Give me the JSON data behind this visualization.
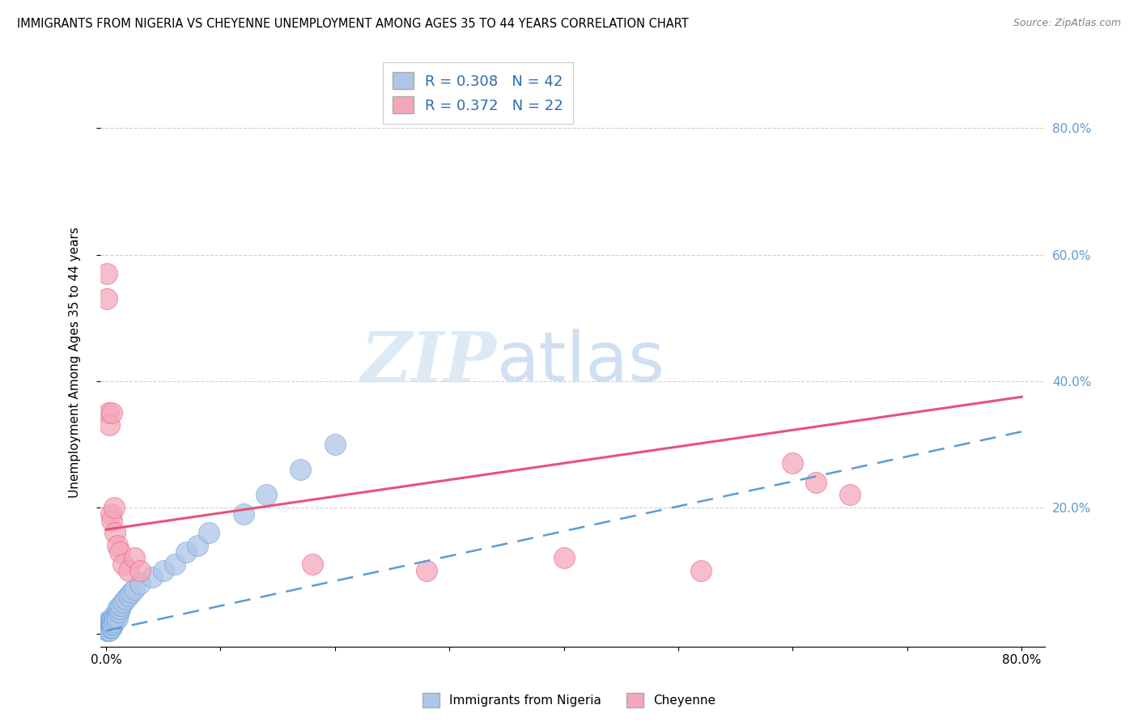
{
  "title": "IMMIGRANTS FROM NIGERIA VS CHEYENNE UNEMPLOYMENT AMONG AGES 35 TO 44 YEARS CORRELATION CHART",
  "source": "Source: ZipAtlas.com",
  "ylabel": "Unemployment Among Ages 35 to 44 years",
  "legend_label1": "Immigrants from Nigeria",
  "legend_label2": "Cheyenne",
  "R1": 0.308,
  "N1": 42,
  "R2": 0.372,
  "N2": 22,
  "color1": "#aec6e8",
  "color2": "#f4a7b9",
  "trendline1_color": "#5b9bd5",
  "trendline2_color": "#e8527a",
  "watermark_zip": "ZIP",
  "watermark_atlas": "atlas",
  "blue_x": [
    0.001,
    0.001,
    0.001,
    0.002,
    0.002,
    0.002,
    0.003,
    0.003,
    0.003,
    0.003,
    0.004,
    0.004,
    0.005,
    0.005,
    0.005,
    0.006,
    0.006,
    0.007,
    0.007,
    0.008,
    0.009,
    0.01,
    0.01,
    0.011,
    0.012,
    0.013,
    0.015,
    0.017,
    0.02,
    0.022,
    0.025,
    0.03,
    0.04,
    0.05,
    0.06,
    0.07,
    0.08,
    0.09,
    0.12,
    0.14,
    0.17,
    0.2
  ],
  "blue_y": [
    0.01,
    0.005,
    0.02,
    0.01,
    0.015,
    0.005,
    0.01,
    0.015,
    0.02,
    0.005,
    0.01,
    0.02,
    0.01,
    0.015,
    0.02,
    0.015,
    0.025,
    0.02,
    0.03,
    0.025,
    0.03,
    0.025,
    0.04,
    0.035,
    0.04,
    0.045,
    0.05,
    0.055,
    0.06,
    0.065,
    0.07,
    0.08,
    0.09,
    0.1,
    0.11,
    0.13,
    0.14,
    0.16,
    0.19,
    0.22,
    0.26,
    0.3
  ],
  "blue_trend_x0": 0.0,
  "blue_trend_x1": 0.8,
  "blue_trend_y0": 0.005,
  "blue_trend_y1": 0.32,
  "pink_x": [
    0.001,
    0.001,
    0.002,
    0.003,
    0.004,
    0.005,
    0.005,
    0.007,
    0.008,
    0.01,
    0.012,
    0.015,
    0.02,
    0.025,
    0.03,
    0.18,
    0.28,
    0.4,
    0.52,
    0.6,
    0.62,
    0.65
  ],
  "pink_y": [
    0.57,
    0.53,
    0.35,
    0.33,
    0.19,
    0.18,
    0.35,
    0.2,
    0.16,
    0.14,
    0.13,
    0.11,
    0.1,
    0.12,
    0.1,
    0.11,
    0.1,
    0.12,
    0.1,
    0.27,
    0.24,
    0.22
  ],
  "pink_trend_x0": 0.0,
  "pink_trend_x1": 0.8,
  "pink_trend_y0": 0.165,
  "pink_trend_y1": 0.375,
  "xlim": [
    -0.005,
    0.82
  ],
  "ylim": [
    -0.02,
    0.88
  ],
  "y_ticks": [
    0.0,
    0.2,
    0.4,
    0.6,
    0.8
  ],
  "y_tick_labels": [
    "",
    "20.0%",
    "40.0%",
    "60.0%",
    "80.0%"
  ],
  "x_tick_left_label": "0.0%",
  "x_tick_right_label": "80.0%"
}
